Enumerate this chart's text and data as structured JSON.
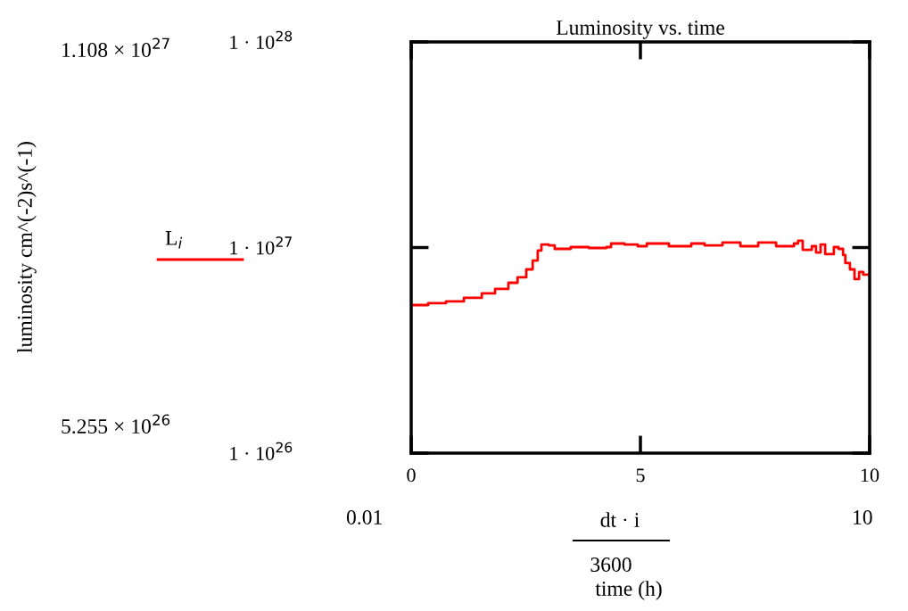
{
  "chart_data": {
    "type": "step",
    "title": "Luminosity vs. time",
    "annotations": [
      "1.108 × 10$^{27}$",
      "5.255 × 10$^{26}$",
      "0.01",
      "10",
      "dt · i",
      "3600",
      "time (h)",
      "luminosity cm^(-2)s^(-1)"
    ],
    "log": "y",
    "xlim": [
      0,
      10
    ],
    "xticks": [
      0,
      5,
      10
    ],
    "ylim": [
      1e+26,
      1e+28
    ],
    "yticks": [
      {
        "value": 1e+26,
        "label": "1 · 10$^{26}$"
      },
      {
        "value": 1e+27,
        "label": "1 · 10$^{27}$"
      },
      {
        "value": 1e+28,
        "label": "1 · 10$^{28}$"
      }
    ],
    "grid": false,
    "legend": "left",
    "line_style": "solid",
    "marker": "none",
    "series": [
      {
        "name": "L$_{i}$",
        "color": "#ff0000",
        "x": [
          0,
          0.37,
          0.76,
          1.15,
          1.54,
          1.83,
          2.12,
          2.32,
          2.51,
          2.65,
          2.76,
          2.84,
          3.0,
          3.13,
          3.48,
          3.87,
          4.26,
          4.36,
          4.65,
          4.94,
          5.14,
          5.62,
          6.11,
          6.4,
          6.79,
          7.18,
          7.57,
          7.96,
          8.35,
          8.44,
          8.54,
          8.74,
          8.83,
          8.93,
          9.03,
          9.22,
          9.32,
          9.42,
          9.47,
          9.57,
          9.67,
          9.77,
          9.86,
          10
        ],
        "values": [
          5.25e+26,
          5.36e+26,
          5.47e+26,
          5.69e+26,
          5.98e+26,
          6.29e+26,
          6.74e+26,
          7.16e+26,
          7.83e+26,
          8.65e+26,
          9.66e+26,
          1.035e+27,
          1.025e+27,
          9.85e+26,
          1.005e+27,
          9.95e+26,
          1.005e+27,
          1.046e+27,
          1.035e+27,
          1.015e+27,
          1.046e+27,
          1.015e+27,
          1.046e+27,
          1.025e+27,
          1.057e+27,
          1.015e+27,
          1.057e+27,
          1.015e+27,
          1.046e+27,
          1.078e+27,
          9.75e+26,
          1.015e+27,
          9.46e+26,
          1.035e+27,
          9.28e+26,
          1.005e+27,
          9.85e+26,
          9.19e+26,
          8.4e+26,
          7.83e+26,
          7.02e+26,
          7.6e+26,
          7.38e+26,
          7.3e+26
        ]
      }
    ]
  }
}
